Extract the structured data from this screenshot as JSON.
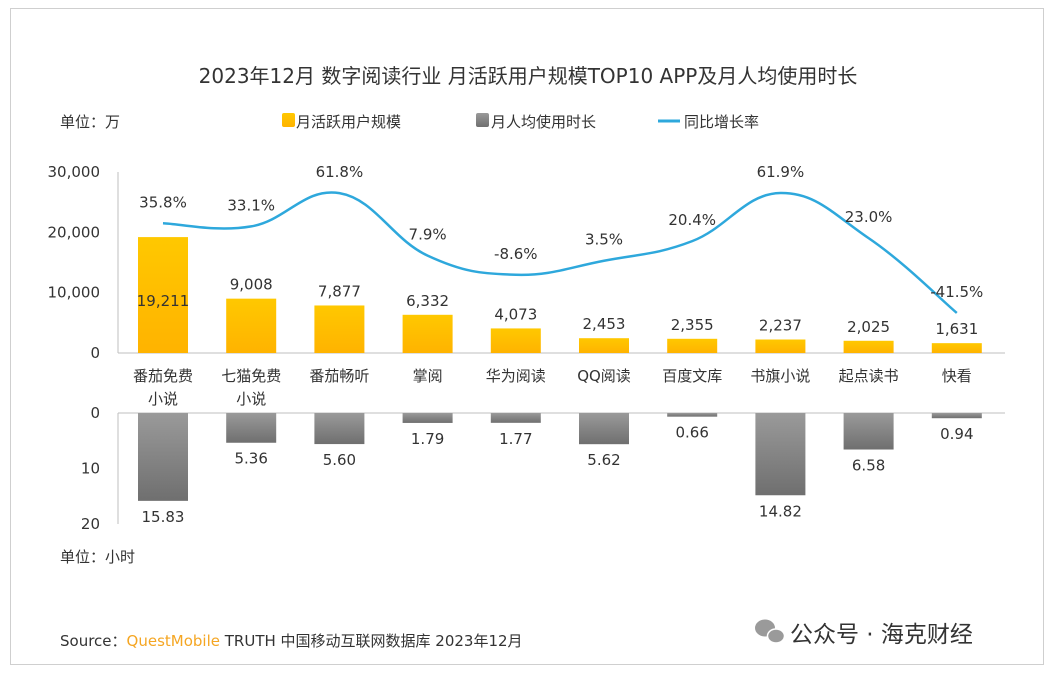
{
  "chart_data": [
    {
      "type": "bar",
      "title": "2023年12月 数字阅读行业 月活跃用户规模TOP10 APP及月人均使用时长",
      "unit_label": "单位：万",
      "categories": [
        "番茄免费小说",
        "七猫免费小说",
        "番茄畅听",
        "掌阅",
        "华为阅读",
        "QQ阅读",
        "百度文库",
        "书旗小说",
        "起点读书",
        "快看"
      ],
      "ylim": [
        0,
        30000
      ],
      "yticks": [
        "0",
        "10,000",
        "20,000",
        "30,000"
      ],
      "series": [
        {
          "name": "月活跃用户规模",
          "type": "bar",
          "color": "#FFC000",
          "values": [
            19211,
            9008,
            7877,
            6332,
            4073,
            2453,
            2355,
            2237,
            2025,
            1631
          ],
          "labels": [
            "19,211",
            "9,008",
            "7,877",
            "6,332",
            "4,073",
            "2,453",
            "2,355",
            "2,237",
            "2,025",
            "1,631"
          ]
        },
        {
          "name": "同比增长率",
          "type": "line",
          "color": "#2EA8DC",
          "values": [
            35.8,
            33.1,
            61.8,
            7.9,
            -8.6,
            3.5,
            20.4,
            61.9,
            23.0,
            -41.5
          ],
          "labels": [
            "35.8%",
            "33.1%",
            "61.8%",
            "7.9%",
            "-8.6%",
            "3.5%",
            "20.4%",
            "61.9%",
            "23.0%",
            "-41.5%"
          ]
        }
      ],
      "legend": "top"
    },
    {
      "type": "bar",
      "unit_label": "单位：小时",
      "categories": [
        "番茄免费小说",
        "七猫免费小说",
        "番茄畅听",
        "掌阅",
        "华为阅读",
        "QQ阅读",
        "百度文库",
        "书旗小说",
        "起点读书",
        "快看"
      ],
      "ylim": [
        0,
        20
      ],
      "inverted": true,
      "yticks": [
        "0",
        "10",
        "20"
      ],
      "series": [
        {
          "name": "月人均使用时长",
          "type": "bar",
          "color": "#8C8C8C",
          "values": [
            15.83,
            5.36,
            5.6,
            1.79,
            1.77,
            5.62,
            0.66,
            14.82,
            6.58,
            0.94
          ],
          "labels": [
            "15.83",
            "5.36",
            "5.60",
            "1.79",
            "1.77",
            "5.62",
            "0.66",
            "14.82",
            "6.58",
            "0.94"
          ]
        }
      ]
    }
  ],
  "footer": {
    "source_prefix": "Source：",
    "source_brand": "QuestMobile",
    "source_rest": " TRUTH 中国移动互联网数据库 2023年12月",
    "watermark": "公众号 · 海克财经"
  },
  "colors": {
    "brand": "#F5A623"
  }
}
